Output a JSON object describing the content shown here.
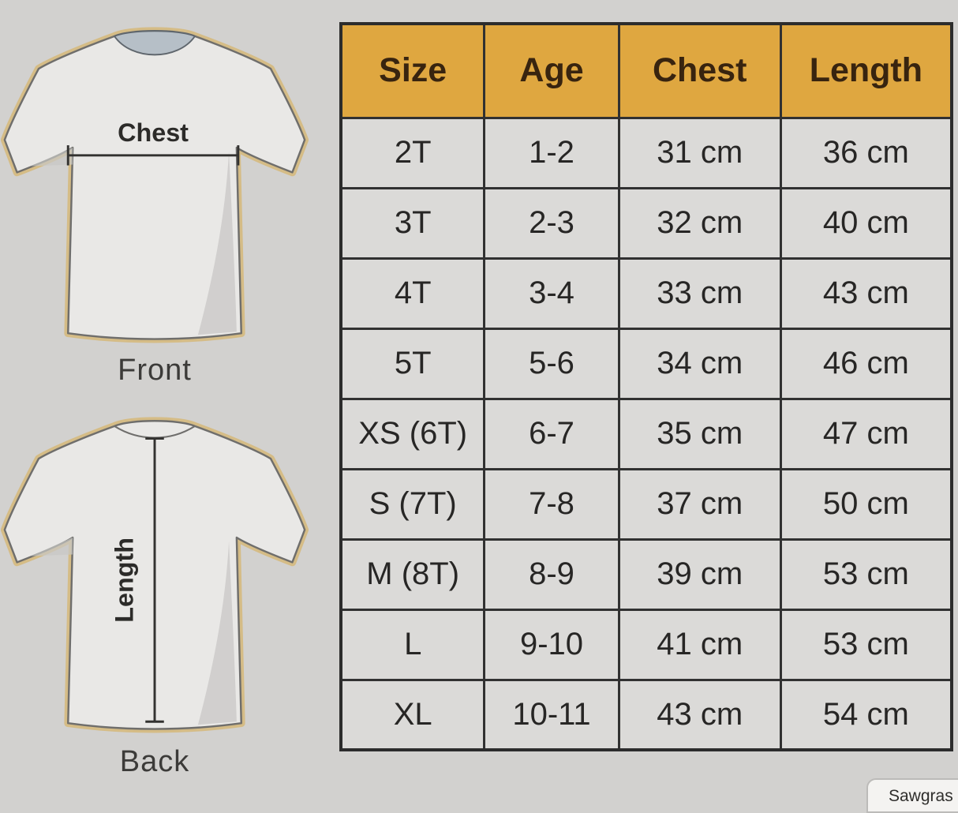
{
  "page": {
    "background": "#d2d1cf",
    "border_color": "#313131",
    "cell_bg": "#dbdad8",
    "header_bg": "#dfa740"
  },
  "diagram": {
    "front": {
      "measure_label": "Chest",
      "caption": "Front"
    },
    "back": {
      "measure_label": "Length",
      "caption": "Back"
    }
  },
  "table": {
    "columns": [
      "Size",
      "Age",
      "Chest",
      "Length"
    ],
    "rows": [
      [
        "2T",
        "1-2",
        "31 cm",
        "36 cm"
      ],
      [
        "3T",
        "2-3",
        "32 cm",
        "40 cm"
      ],
      [
        "4T",
        "3-4",
        "33 cm",
        "43 cm"
      ],
      [
        "5T",
        "5-6",
        "34 cm",
        "46 cm"
      ],
      [
        "XS (6T)",
        "6-7",
        "35 cm",
        "47 cm"
      ],
      [
        "S (7T)",
        "7-8",
        "37 cm",
        "50 cm"
      ],
      [
        "M (8T)",
        "8-9",
        "39 cm",
        "53 cm"
      ],
      [
        "L",
        "9-10",
        "41 cm",
        "53 cm"
      ],
      [
        "XL",
        "10-11",
        "43 cm",
        "54 cm"
      ]
    ]
  },
  "watermark": {
    "text": "Sawgras"
  },
  "chart_data": {
    "type": "table",
    "columns": [
      "Size",
      "Age",
      "Chest",
      "Length"
    ],
    "rows": [
      [
        "2T",
        "1-2",
        "31 cm",
        "36 cm"
      ],
      [
        "3T",
        "2-3",
        "32 cm",
        "40 cm"
      ],
      [
        "4T",
        "3-4",
        "33 cm",
        "43 cm"
      ],
      [
        "5T",
        "5-6",
        "34 cm",
        "46 cm"
      ],
      [
        "XS (6T)",
        "6-7",
        "35 cm",
        "47 cm"
      ],
      [
        "S (7T)",
        "7-8",
        "37 cm",
        "50 cm"
      ],
      [
        "M (8T)",
        "8-9",
        "39 cm",
        "53 cm"
      ],
      [
        "L",
        "9-10",
        "41 cm",
        "53 cm"
      ],
      [
        "XL",
        "10-11",
        "43 cm",
        "54 cm"
      ]
    ],
    "annotations": [
      "Chest measured across front",
      "Length measured down back"
    ],
    "legend_position": "none",
    "header_bg": "#dfa740"
  }
}
